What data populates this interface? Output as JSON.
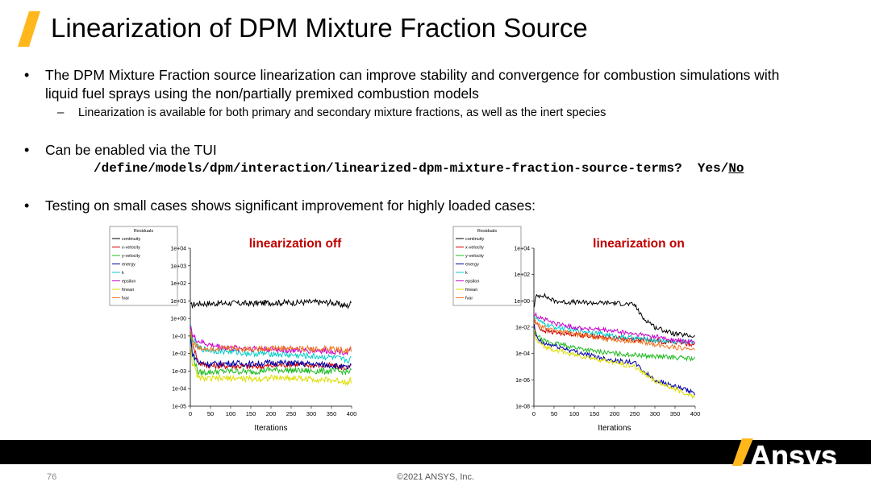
{
  "slide": {
    "title": "Linearization of DPM Mixture Fraction Source",
    "bullets": [
      {
        "line1": "The DPM Mixture Fraction source linearization can improve stability and convergence for combustion simulations with",
        "line2": "liquid fuel sprays using the non/partially premixed combustion models"
      },
      {
        "line1": "Can be enabled via the TUI"
      },
      {
        "line1": "Testing on small cases shows significant improvement for highly loaded cases:"
      }
    ],
    "bullet_symbol": "•",
    "sub_dash": "–",
    "sub_bullet": "Linearization is available for both primary and secondary mixture fractions, as well as the inert species",
    "tui_command": "/define/models/dpm/interaction/linearized-dpm-mixture-fraction-source-terms?",
    "tui_yes": "Yes/",
    "tui_no": "No",
    "page_number": "76",
    "copyright": "©2021 ANSYS, Inc.",
    "logo_text": "Ansys",
    "accent_color": "#FFB71B"
  },
  "chart_data": [
    {
      "type": "line",
      "annotation": "linearization off",
      "xlabel": "Iterations",
      "ylabel": "",
      "yscale": "log",
      "xlim": [
        0,
        400
      ],
      "ylim": [
        1e-05,
        10000
      ],
      "x_ticks": [
        "0",
        "50",
        "100",
        "150",
        "200",
        "250",
        "300",
        "350",
        "400"
      ],
      "y_ticks": [
        "1e-05",
        "1e-04",
        "1e-03",
        "1e-02",
        "1e-01",
        "1e+00",
        "1e+01",
        "1e+02",
        "1e+03",
        "1e+04"
      ],
      "legend_title": "Residuals",
      "legend_position": "upper-left",
      "series": [
        {
          "name": "continuity",
          "color": "#000000",
          "x": [
            0,
            5,
            20,
            50,
            100,
            150,
            200,
            250,
            300,
            350,
            390,
            400
          ],
          "values": [
            5,
            6,
            7,
            7,
            7.5,
            7,
            8,
            8,
            8.5,
            8,
            5,
            8
          ]
        },
        {
          "name": "x-velocity",
          "color": "#cc0000",
          "x": [
            0,
            5,
            20,
            50,
            100,
            150,
            200,
            250,
            300,
            350,
            390,
            400
          ],
          "values": [
            0.2,
            0.05,
            0.003,
            0.002,
            0.002,
            0.0018,
            0.002,
            0.0025,
            0.0022,
            0.002,
            0.0015,
            0.002
          ]
        },
        {
          "name": "y-velocity",
          "color": "#22bb22",
          "x": [
            0,
            5,
            20,
            50,
            100,
            150,
            200,
            250,
            300,
            350,
            390,
            400
          ],
          "values": [
            0.3,
            0.01,
            0.0008,
            0.0009,
            0.001,
            0.0009,
            0.0012,
            0.0011,
            0.001,
            0.001,
            0.0009,
            0.001
          ]
        },
        {
          "name": "energy",
          "color": "#0000aa",
          "x": [
            0,
            5,
            20,
            50,
            100,
            150,
            200,
            250,
            300,
            350,
            390,
            400
          ],
          "values": [
            0.1,
            0.01,
            0.003,
            0.0025,
            0.0028,
            0.0025,
            0.003,
            0.0028,
            0.0025,
            0.0022,
            0.0015,
            0.002
          ]
        },
        {
          "name": "k",
          "color": "#00cccc",
          "x": [
            0,
            5,
            20,
            50,
            100,
            150,
            200,
            250,
            300,
            350,
            390,
            400
          ],
          "values": [
            0.5,
            0.08,
            0.02,
            0.015,
            0.013,
            0.01,
            0.01,
            0.008,
            0.007,
            0.006,
            0.004,
            0.005
          ]
        },
        {
          "name": "epsilon",
          "color": "#cc00cc",
          "x": [
            0,
            5,
            20,
            50,
            100,
            150,
            200,
            250,
            300,
            350,
            390,
            400
          ],
          "values": [
            0.8,
            0.1,
            0.05,
            0.03,
            0.02,
            0.02,
            0.018,
            0.015,
            0.015,
            0.014,
            0.012,
            0.015
          ]
        },
        {
          "name": "fmean",
          "color": "#dddd00",
          "x": [
            0,
            5,
            20,
            50,
            100,
            150,
            200,
            250,
            300,
            350,
            390,
            400
          ],
          "values": [
            0.05,
            0.003,
            0.0004,
            0.00035,
            0.0004,
            0.00035,
            0.0004,
            0.0004,
            0.00035,
            0.0003,
            0.00025,
            0.0003
          ]
        },
        {
          "name": "fvar",
          "color": "#ee7722",
          "x": [
            0,
            5,
            20,
            50,
            100,
            150,
            200,
            250,
            300,
            350,
            390,
            400
          ],
          "values": [
            0.3,
            0.05,
            0.02,
            0.02,
            0.02,
            0.018,
            0.02,
            0.02,
            0.018,
            0.018,
            0.015,
            0.017
          ]
        }
      ]
    },
    {
      "type": "line",
      "annotation": "linearization on",
      "xlabel": "Iterations",
      "ylabel": "",
      "yscale": "log",
      "xlim": [
        0,
        400
      ],
      "ylim": [
        1e-08,
        10000
      ],
      "x_ticks": [
        "0",
        "50",
        "100",
        "150",
        "200",
        "250",
        "300",
        "350",
        "400"
      ],
      "y_ticks": [
        "1e-08",
        "1e-06",
        "1e-04",
        "1e-02",
        "1e+00",
        "1e+02",
        "1e+04"
      ],
      "legend_title": "Residuals",
      "legend_position": "upper-left",
      "series": [
        {
          "name": "continuity",
          "color": "#000000",
          "x": [
            0,
            5,
            20,
            50,
            80,
            100,
            150,
            200,
            250,
            270,
            290,
            300,
            350,
            400
          ],
          "values": [
            0.3,
            2,
            3,
            1,
            0.8,
            0.8,
            0.7,
            0.7,
            0.5,
            0.05,
            0.02,
            0.01,
            0.003,
            0.002
          ]
        },
        {
          "name": "x-velocity",
          "color": "#cc0000",
          "x": [
            0,
            5,
            20,
            50,
            100,
            150,
            200,
            250,
            300,
            350,
            400
          ],
          "values": [
            0.05,
            0.02,
            0.006,
            0.004,
            0.003,
            0.002,
            0.0015,
            0.0012,
            0.0009,
            0.0007,
            0.0005
          ]
        },
        {
          "name": "y-velocity",
          "color": "#22bb22",
          "x": [
            0,
            5,
            20,
            50,
            100,
            150,
            200,
            250,
            300,
            350,
            400
          ],
          "values": [
            0.01,
            0.003,
            0.001,
            0.0006,
            0.0003,
            0.00015,
            0.0001,
            8e-05,
            6e-05,
            5e-05,
            4e-05
          ]
        },
        {
          "name": "energy",
          "color": "#0000aa",
          "x": [
            0,
            5,
            20,
            50,
            100,
            150,
            200,
            250,
            270,
            300,
            350,
            400
          ],
          "values": [
            0.02,
            0.002,
            0.0006,
            0.0004,
            0.00015,
            6e-05,
            3e-05,
            2e-05,
            5e-06,
            1e-06,
            3e-07,
            1e-07
          ]
        },
        {
          "name": "k",
          "color": "#00cccc",
          "x": [
            0,
            5,
            20,
            50,
            100,
            150,
            200,
            250,
            300,
            350,
            400
          ],
          "values": [
            0.1,
            0.05,
            0.02,
            0.01,
            0.006,
            0.004,
            0.002,
            0.0015,
            0.001,
            0.0008,
            0.0008
          ]
        },
        {
          "name": "epsilon",
          "color": "#cc00cc",
          "x": [
            0,
            5,
            20,
            50,
            100,
            150,
            200,
            250,
            300,
            350,
            400
          ],
          "values": [
            0.1,
            0.08,
            0.05,
            0.02,
            0.01,
            0.007,
            0.005,
            0.003,
            0.002,
            0.001,
            0.0007
          ]
        },
        {
          "name": "fmean",
          "color": "#dddd00",
          "x": [
            0,
            5,
            20,
            50,
            100,
            150,
            200,
            250,
            270,
            300,
            350,
            400
          ],
          "values": [
            0.01,
            0.001,
            0.0004,
            0.0002,
            8e-05,
            4e-05,
            2e-05,
            1e-05,
            4e-06,
            8e-07,
            2e-07,
            5e-08
          ]
        },
        {
          "name": "fvar",
          "color": "#ee7722",
          "x": [
            0,
            5,
            20,
            50,
            100,
            150,
            200,
            250,
            300,
            350,
            400
          ],
          "values": [
            0.05,
            0.02,
            0.01,
            0.006,
            0.003,
            0.002,
            0.001,
            0.0008,
            0.0005,
            0.0003,
            0.0002
          ]
        }
      ]
    }
  ]
}
